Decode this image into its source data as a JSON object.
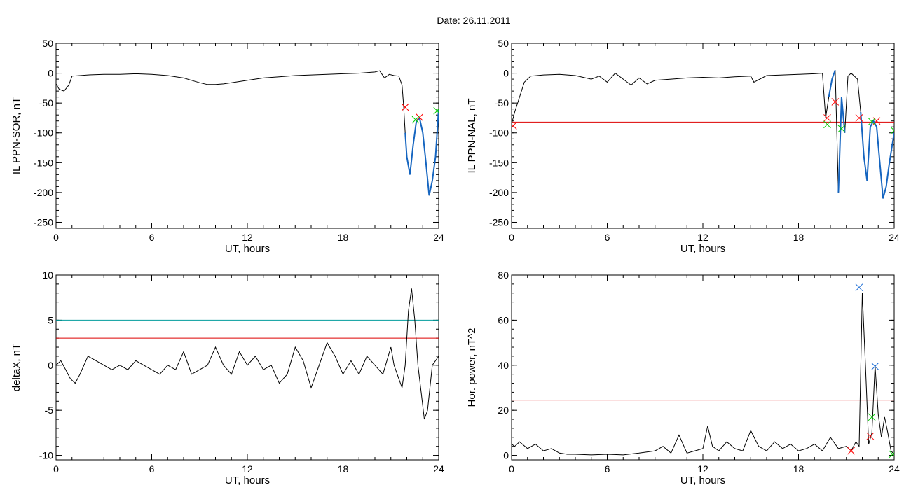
{
  "title": "Date:  26.11.2011",
  "colors": {
    "threshold": "#dd0000",
    "threshold2": "#009b9b",
    "highlight": "#1565c0",
    "marker_red": "#ff0000",
    "marker_green": "#00cc00",
    "marker_blue": "#1f6fd6",
    "trace": "#000000"
  },
  "chart_data": [
    {
      "id": "panel-il-sor",
      "type": "line",
      "xlabel": "UT, hours",
      "ylabel": "IL PPN-SOR, nT",
      "xlim": [
        0,
        24
      ],
      "ylim": [
        -260,
        50
      ],
      "xticks": [
        0,
        6,
        12,
        18,
        24
      ],
      "yticks": [
        -250,
        -200,
        -150,
        -100,
        -50,
        0,
        50
      ],
      "series": [
        {
          "x": [
            0,
            0.2,
            0.5,
            0.8,
            1.0,
            2,
            3,
            4,
            5,
            6,
            7,
            8,
            8.5,
            9,
            9.5,
            10,
            10.5,
            11,
            12,
            13,
            14,
            15,
            16,
            17,
            18,
            19,
            20,
            20.3,
            20.6,
            20.9,
            21.2,
            21.5,
            21.7,
            21.8,
            21.9,
            22.0,
            22.2,
            22.4,
            22.6,
            22.8,
            23.0,
            23.2,
            23.4,
            23.6,
            23.8,
            24
          ],
          "y": [
            -18,
            -27,
            -30,
            -20,
            -5,
            -3,
            -2,
            -2,
            -1,
            -2,
            -4,
            -8,
            -12,
            -16,
            -19,
            -19,
            -18,
            -16,
            -12,
            -8,
            -6,
            -4,
            -3,
            -2,
            -1,
            0,
            2,
            4,
            -8,
            -2,
            -4,
            -5,
            -20,
            -55,
            -100,
            -140,
            -170,
            -120,
            -80,
            -75,
            -100,
            -150,
            -205,
            -180,
            -140,
            -60
          ]
        }
      ],
      "highlight": {
        "x_from": 21.9,
        "x_to": 24
      },
      "threshold": -75,
      "markers": [
        {
          "x": 21.9,
          "y": -57,
          "color": "red"
        },
        {
          "x": 22.8,
          "y": -74,
          "color": "red"
        },
        {
          "x": 22.55,
          "y": -78,
          "color": "green"
        },
        {
          "x": 23.9,
          "y": -63,
          "color": "green"
        }
      ]
    },
    {
      "id": "panel-il-nal",
      "type": "line",
      "xlabel": "UT, hours",
      "ylabel": "IL PPN-NAL, nT",
      "xlim": [
        0,
        24
      ],
      "ylim": [
        -260,
        50
      ],
      "xticks": [
        0,
        6,
        12,
        18,
        24
      ],
      "yticks": [
        -250,
        -200,
        -150,
        -100,
        -50,
        0,
        50
      ],
      "series": [
        {
          "x": [
            0,
            0.2,
            0.5,
            0.8,
            1.2,
            2,
            3,
            4,
            5,
            5.5,
            6,
            6.5,
            7,
            7.5,
            8,
            8.5,
            9,
            10,
            11,
            12,
            13,
            14,
            15,
            15.2,
            16,
            17,
            18,
            19,
            19.5,
            19.7,
            19.9,
            20.1,
            20.3,
            20.5,
            20.7,
            20.9,
            21.1,
            21.3,
            21.5,
            21.7,
            21.9,
            22.1,
            22.3,
            22.5,
            22.7,
            22.9,
            23.1,
            23.3,
            23.5,
            23.7,
            24
          ],
          "y": [
            -85,
            -65,
            -40,
            -15,
            -5,
            -3,
            -2,
            -4,
            -10,
            -5,
            -15,
            0,
            -10,
            -20,
            -8,
            -18,
            -12,
            -10,
            -8,
            -7,
            -8,
            -6,
            -5,
            -15,
            -4,
            -3,
            -2,
            -1,
            0,
            -75,
            -40,
            -10,
            5,
            -200,
            -40,
            -100,
            -5,
            0,
            -5,
            -10,
            -65,
            -140,
            -180,
            -90,
            -80,
            -90,
            -150,
            -210,
            -190,
            -150,
            -100
          ]
        }
      ],
      "highlight_ranges": [
        [
          19.9,
          20.3
        ],
        [
          20.4,
          20.9
        ],
        [
          21.9,
          24
        ]
      ],
      "threshold": -82,
      "markers": [
        {
          "x": 0.1,
          "y": -88,
          "color": "red"
        },
        {
          "x": 19.8,
          "y": -75,
          "color": "red"
        },
        {
          "x": 20.3,
          "y": -48,
          "color": "red"
        },
        {
          "x": 21.8,
          "y": -75,
          "color": "red"
        },
        {
          "x": 22.9,
          "y": -80,
          "color": "red"
        },
        {
          "x": 19.8,
          "y": -86,
          "color": "green"
        },
        {
          "x": 20.7,
          "y": -93,
          "color": "green"
        },
        {
          "x": 22.6,
          "y": -81,
          "color": "green"
        },
        {
          "x": 24.0,
          "y": -96,
          "color": "green"
        }
      ]
    },
    {
      "id": "panel-deltax",
      "type": "line",
      "xlabel": "UT, hours",
      "ylabel": "deltaX, nT",
      "xlim": [
        0,
        24
      ],
      "ylim": [
        -10.5,
        10
      ],
      "xticks": [
        0,
        6,
        12,
        18,
        24
      ],
      "yticks": [
        -10,
        -5,
        0,
        5,
        10
      ],
      "series": [
        {
          "x": [
            0,
            0.3,
            0.6,
            0.9,
            1.2,
            1.5,
            2,
            2.5,
            3,
            3.5,
            4,
            4.5,
            5,
            5.5,
            6,
            6.5,
            7,
            7.5,
            8,
            8.5,
            9,
            9.5,
            10,
            10.5,
            11,
            11.5,
            12,
            12.5,
            13,
            13.5,
            14,
            14.5,
            15,
            15.5,
            16,
            16.5,
            17,
            17.5,
            18,
            18.5,
            19,
            19.5,
            20,
            20.5,
            21,
            21.2,
            21.5,
            21.7,
            21.9,
            22.1,
            22.3,
            22.5,
            22.7,
            22.9,
            23.1,
            23.3,
            23.6,
            24
          ],
          "y": [
            0,
            0.5,
            -0.5,
            -1.5,
            -2,
            -1,
            1,
            0.5,
            0,
            -0.5,
            0,
            -0.5,
            0.5,
            0,
            -0.5,
            -1,
            0,
            -0.5,
            1.5,
            -1,
            -0.5,
            0,
            2,
            0,
            -1,
            1.5,
            0,
            1,
            -0.5,
            0,
            -2,
            -1,
            2,
            0.5,
            -2.5,
            0,
            2.5,
            1,
            -1,
            0.5,
            -1,
            1,
            0,
            -1,
            2,
            0,
            -1.5,
            -2.5,
            0,
            6,
            8.5,
            5,
            0,
            -3,
            -6,
            -5,
            0,
            1
          ]
        }
      ],
      "threshold": 3,
      "threshold2": 5
    },
    {
      "id": "panel-hor-power",
      "type": "line",
      "xlabel": "UT, hours",
      "ylabel": "Hor. power, nT^2",
      "xlim": [
        0,
        24
      ],
      "ylim": [
        -2,
        80
      ],
      "xticks": [
        0,
        6,
        12,
        18,
        24
      ],
      "yticks": [
        0,
        20,
        40,
        60,
        80
      ],
      "series": [
        {
          "x": [
            0,
            0.2,
            0.5,
            1,
            1.5,
            2,
            2.5,
            3,
            3.5,
            4,
            5,
            6,
            7,
            8,
            9,
            9.5,
            10,
            10.5,
            11,
            11.5,
            12,
            12.3,
            12.6,
            13,
            13.5,
            14,
            14.5,
            15,
            15.5,
            16,
            16.5,
            17,
            17.5,
            18,
            18.5,
            19,
            19.5,
            20,
            20.5,
            21,
            21.3,
            21.6,
            21.8,
            22.0,
            22.2,
            22.4,
            22.6,
            22.8,
            23.0,
            23.2,
            23.4,
            23.6,
            23.8,
            24
          ],
          "y": [
            5,
            4,
            6,
            3,
            5,
            2,
            3,
            1,
            0.5,
            0.5,
            0.2,
            0.5,
            0.2,
            1,
            2,
            4,
            1,
            9,
            1,
            2,
            3,
            13,
            4,
            2,
            6,
            3,
            2,
            11,
            4,
            2,
            6,
            3,
            5,
            2,
            3,
            5,
            2,
            8,
            3,
            4,
            2,
            6,
            4,
            72,
            40,
            5,
            10,
            40,
            18,
            8,
            17,
            10,
            2,
            0.5
          ]
        }
      ],
      "threshold": 24.5,
      "markers": [
        {
          "x": 21.8,
          "y": 74.5,
          "color": "blue"
        },
        {
          "x": 22.8,
          "y": 39.5,
          "color": "blue"
        },
        {
          "x": 21.3,
          "y": 2,
          "color": "red"
        },
        {
          "x": 22.5,
          "y": 8.5,
          "color": "red"
        },
        {
          "x": 22.6,
          "y": 17,
          "color": "green"
        },
        {
          "x": 23.9,
          "y": 0.5,
          "color": "green"
        }
      ]
    }
  ]
}
